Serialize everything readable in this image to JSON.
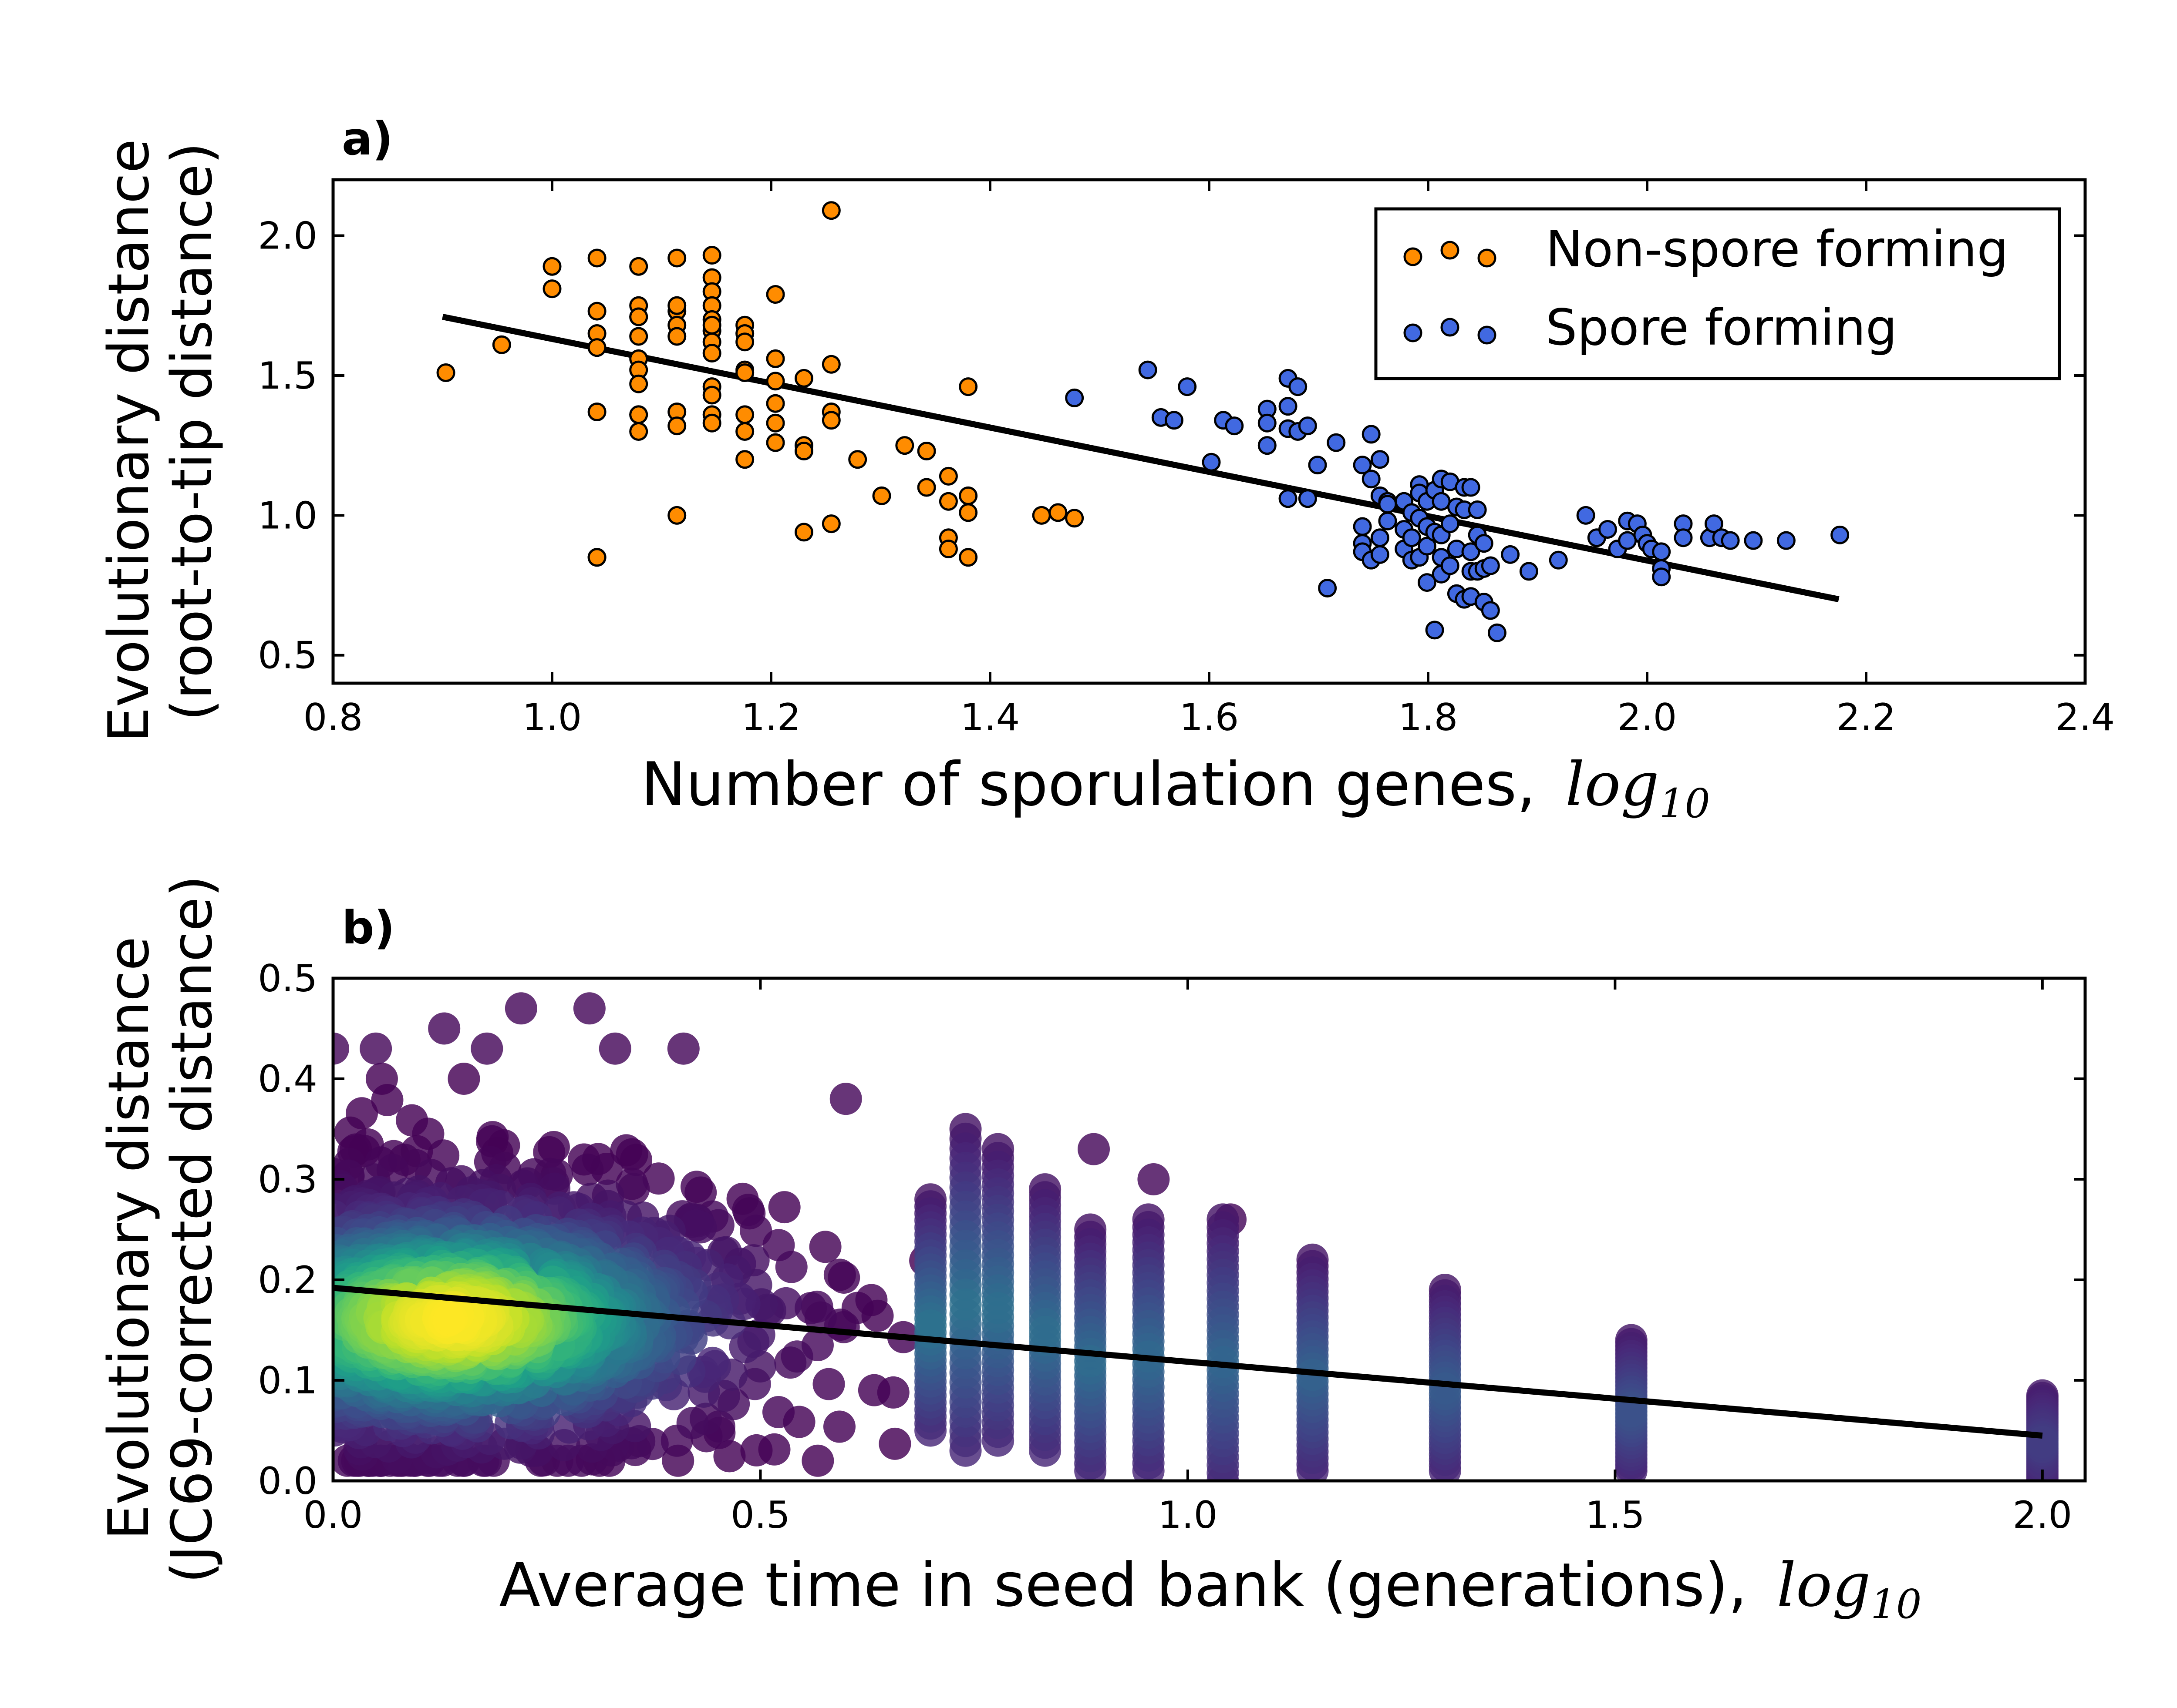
{
  "chart_data": [
    {
      "panel_label": "a)",
      "type": "scatter",
      "xlabel": "Number of sporulation genes,",
      "xlabel_math": "log",
      "xlabel_math_sub": "10",
      "ylabel_line1": "Evolutionary distance",
      "ylabel_line2": "(root-to-tip distance)",
      "xlim": [
        0.8,
        2.4
      ],
      "ylim": [
        0.4,
        2.2
      ],
      "xticks": [
        0.8,
        1.0,
        1.2,
        1.4,
        1.6,
        1.8,
        2.0,
        2.2,
        2.4
      ],
      "xtick_labels": [
        "0.8",
        "1.0",
        "1.2",
        "1.4",
        "1.6",
        "1.8",
        "2.0",
        "2.2",
        "2.4"
      ],
      "yticks": [
        0.5,
        1.0,
        1.5,
        2.0
      ],
      "ytick_labels": [
        "0.5",
        "1.0",
        "1.5",
        "2.0"
      ],
      "grid": false,
      "legend_position": "top-right",
      "colors": {
        "non_spore": "#ff8c00",
        "spore": "#4169e1",
        "edge": "#000000",
        "fit": "#000000"
      },
      "fit_line": {
        "x": [
          0.9,
          2.175
        ],
        "y": [
          1.71,
          0.7
        ]
      },
      "series": [
        {
          "name": "Non-spore forming",
          "color": "#ff8c00",
          "x": [
            0.903,
            0.954,
            1.0,
            1.0,
            1.041,
            1.041,
            1.041,
            1.041,
            1.041,
            1.041,
            1.041,
            1.079,
            1.079,
            1.079,
            1.079,
            1.079,
            1.079,
            1.079,
            1.079,
            1.079,
            1.079,
            1.079,
            1.114,
            1.114,
            1.114,
            1.114,
            1.114,
            1.114,
            1.114,
            1.114,
            1.146,
            1.146,
            1.146,
            1.146,
            1.146,
            1.146,
            1.146,
            1.146,
            1.146,
            1.146,
            1.146,
            1.146,
            1.146,
            1.176,
            1.176,
            1.176,
            1.176,
            1.176,
            1.176,
            1.176,
            1.176,
            1.204,
            1.204,
            1.204,
            1.204,
            1.204,
            1.204,
            1.23,
            1.23,
            1.23,
            1.23,
            1.255,
            1.255,
            1.255,
            1.255,
            1.255,
            1.279,
            1.301,
            1.322,
            1.342,
            1.342,
            1.362,
            1.362,
            1.362,
            1.362,
            1.38,
            1.38,
            1.38,
            1.38,
            1.447,
            1.462,
            1.477
          ],
          "y": [
            1.51,
            1.61,
            1.89,
            1.81,
            1.92,
            1.73,
            1.65,
            1.6,
            1.37,
            0.85,
            0.85,
            1.89,
            1.75,
            1.71,
            1.64,
            1.56,
            1.52,
            1.47,
            1.36,
            1.3,
            1.36,
            1.71,
            1.92,
            1.73,
            1.68,
            1.64,
            1.37,
            1.32,
            1.0,
            1.75,
            1.93,
            1.85,
            1.8,
            1.75,
            1.7,
            1.66,
            1.62,
            1.58,
            1.46,
            1.43,
            1.36,
            1.33,
            1.68,
            1.68,
            1.65,
            1.62,
            1.52,
            1.51,
            1.36,
            1.3,
            1.2,
            1.79,
            1.56,
            1.4,
            1.33,
            1.26,
            1.48,
            1.49,
            1.25,
            1.23,
            0.94,
            2.09,
            1.54,
            1.37,
            1.34,
            0.97,
            1.2,
            1.07,
            1.25,
            1.23,
            1.1,
            1.14,
            0.92,
            0.88,
            1.05,
            1.46,
            1.07,
            1.01,
            0.85,
            1.0,
            1.01,
            0.99
          ]
        },
        {
          "name": "Spore forming",
          "color": "#4169e1",
          "x": [
            1.477,
            1.544,
            1.556,
            1.568,
            1.58,
            1.602,
            1.613,
            1.623,
            1.653,
            1.653,
            1.653,
            1.672,
            1.672,
            1.672,
            1.672,
            1.681,
            1.681,
            1.69,
            1.69,
            1.699,
            1.708,
            1.716,
            1.74,
            1.74,
            1.74,
            1.74,
            1.748,
            1.748,
            1.748,
            1.756,
            1.756,
            1.756,
            1.756,
            1.763,
            1.763,
            1.763,
            1.778,
            1.778,
            1.778,
            1.785,
            1.785,
            1.785,
            1.792,
            1.792,
            1.792,
            1.792,
            1.799,
            1.799,
            1.799,
            1.799,
            1.806,
            1.806,
            1.806,
            1.812,
            1.812,
            1.812,
            1.812,
            1.812,
            1.82,
            1.82,
            1.82,
            1.826,
            1.826,
            1.826,
            1.833,
            1.833,
            1.833,
            1.839,
            1.839,
            1.839,
            1.839,
            1.845,
            1.845,
            1.845,
            1.851,
            1.851,
            1.851,
            1.857,
            1.857,
            1.863,
            1.875,
            1.892,
            1.919,
            1.944,
            1.954,
            1.964,
            1.973,
            1.982,
            1.982,
            1.991,
            1.996,
            2.0,
            2.004,
            2.013,
            2.013,
            2.013,
            2.033,
            2.033,
            2.057,
            2.061,
            2.068,
            2.076,
            2.097,
            2.127,
            2.176
          ],
          "y": [
            1.42,
            1.52,
            1.35,
            1.34,
            1.46,
            1.19,
            1.34,
            1.32,
            1.38,
            1.33,
            1.25,
            1.49,
            1.39,
            1.31,
            1.06,
            1.3,
            1.46,
            1.32,
            1.06,
            1.18,
            0.74,
            1.26,
            1.18,
            0.96,
            0.9,
            0.87,
            1.29,
            1.13,
            0.84,
            1.2,
            1.07,
            0.92,
            0.86,
            1.05,
            1.04,
            0.98,
            1.05,
            0.95,
            0.88,
            1.01,
            0.92,
            0.84,
            1.11,
            1.08,
            0.99,
            0.85,
            1.05,
            0.96,
            0.89,
            0.76,
            1.09,
            0.94,
            0.59,
            1.13,
            1.05,
            0.93,
            0.85,
            0.79,
            1.12,
            0.97,
            0.82,
            1.03,
            0.88,
            0.72,
            1.1,
            1.02,
            0.7,
            1.1,
            0.87,
            0.8,
            0.71,
            1.02,
            0.93,
            0.8,
            0.9,
            0.81,
            0.69,
            0.82,
            0.66,
            0.58,
            0.86,
            0.8,
            0.84,
            1.0,
            0.92,
            0.95,
            0.88,
            0.98,
            0.91,
            0.97,
            0.93,
            0.9,
            0.88,
            0.87,
            0.81,
            0.78,
            0.97,
            0.92,
            0.92,
            0.97,
            0.92,
            0.91,
            0.91,
            0.91,
            0.93
          ]
        }
      ]
    },
    {
      "panel_label": "b)",
      "type": "scatter",
      "xlabel": "Average time in seed bank (generations),",
      "xlabel_math": "log",
      "xlabel_math_sub": "10",
      "ylabel_line1": "Evolutionary distance",
      "ylabel_line2": "(JC69-corrected distance)",
      "xlim": [
        0.0,
        2.05
      ],
      "ylim": [
        0.0,
        0.5
      ],
      "xticks": [
        0.0,
        0.5,
        1.0,
        1.5,
        2.0
      ],
      "xtick_labels": [
        "0.0",
        "0.5",
        "1.0",
        "1.5",
        "2.0"
      ],
      "yticks": [
        0.0,
        0.1,
        0.2,
        0.3,
        0.4,
        0.5
      ],
      "ytick_labels": [
        "0.0",
        "0.1",
        "0.2",
        "0.3",
        "0.4",
        "0.5"
      ],
      "grid": false,
      "colormap": "viridis",
      "point_color_encodes": "point density",
      "fit_line": {
        "x": [
          0.0,
          2.0
        ],
        "y": [
          0.192,
          0.045
        ]
      },
      "continuous_region": {
        "x_range": [
          0.0,
          0.7
        ],
        "density_peak": {
          "x": 0.14,
          "y": 0.16
        }
      },
      "columns": [
        {
          "x": 0.699,
          "y_range": [
            0.05,
            0.28
          ]
        },
        {
          "x": 0.74,
          "y_range": [
            0.03,
            0.35
          ]
        },
        {
          "x": 0.778,
          "y_range": [
            0.04,
            0.33
          ]
        },
        {
          "x": 0.833,
          "y_range": [
            0.03,
            0.29
          ]
        },
        {
          "x": 0.886,
          "y_range": [
            0.01,
            0.25
          ]
        },
        {
          "x": 0.954,
          "y_range": [
            0.01,
            0.26
          ]
        },
        {
          "x": 1.041,
          "y_range": [
            0.0,
            0.26
          ]
        },
        {
          "x": 1.146,
          "y_range": [
            0.01,
            0.22
          ]
        },
        {
          "x": 1.301,
          "y_range": [
            0.01,
            0.19
          ]
        },
        {
          "x": 1.519,
          "y_range": [
            0.01,
            0.14
          ]
        },
        {
          "x": 2.0,
          "y_range": [
            0.0,
            0.085
          ]
        }
      ],
      "outliers": [
        {
          "x": 0.0,
          "y": 0.43
        },
        {
          "x": 0.05,
          "y": 0.43
        },
        {
          "x": 0.13,
          "y": 0.45
        },
        {
          "x": 0.18,
          "y": 0.43
        },
        {
          "x": 0.22,
          "y": 0.47
        },
        {
          "x": 0.3,
          "y": 0.47
        },
        {
          "x": 0.33,
          "y": 0.43
        },
        {
          "x": 0.41,
          "y": 0.43
        },
        {
          "x": 0.6,
          "y": 0.38
        },
        {
          "x": 0.89,
          "y": 0.33
        },
        {
          "x": 0.96,
          "y": 0.3
        },
        {
          "x": 1.05,
          "y": 0.26
        }
      ]
    }
  ]
}
